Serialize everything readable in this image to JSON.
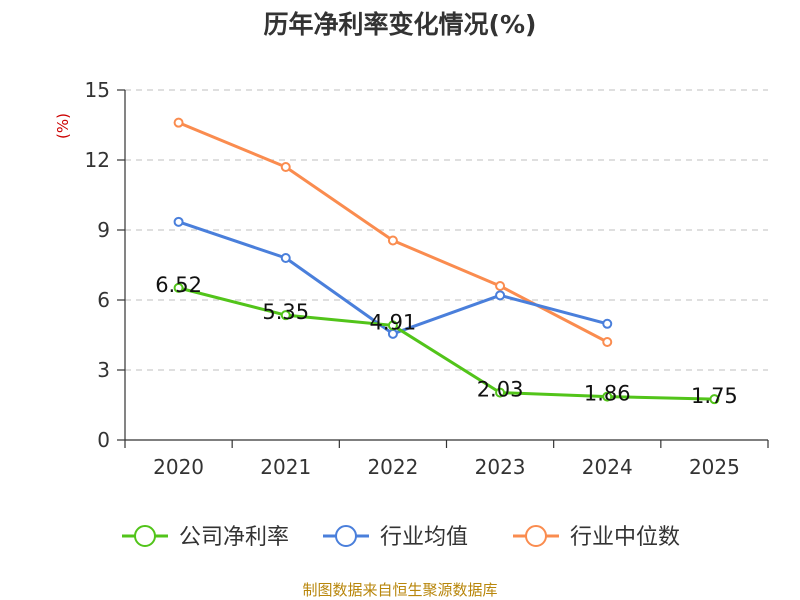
{
  "chart_data": {
    "type": "line",
    "title": "历年净利率变化情况(%)",
    "ylabel": "(%)",
    "xlabel": "",
    "categories": [
      "2020",
      "2021",
      "2022",
      "2023",
      "2024",
      "2025"
    ],
    "ylim": [
      0,
      15
    ],
    "yticks": [
      0,
      3,
      6,
      9,
      12,
      15
    ],
    "grid": true,
    "legend_position": "bottom",
    "series": [
      {
        "name": "公司净利率",
        "color": "#52c41a",
        "values": [
          6.52,
          5.35,
          4.91,
          2.03,
          1.86,
          1.75
        ],
        "labels": [
          "6.52",
          "5.35",
          "4.91",
          "2.03",
          "1.86",
          "1.75"
        ]
      },
      {
        "name": "行业均值",
        "color": "#4a7fdb",
        "values": [
          9.35,
          7.8,
          4.55,
          6.2,
          4.98,
          null
        ]
      },
      {
        "name": "行业中位数",
        "color": "#fa8c4f",
        "values": [
          13.6,
          11.7,
          8.55,
          6.6,
          4.2,
          null
        ]
      }
    ]
  },
  "source": "制图数据来自恒生聚源数据库"
}
